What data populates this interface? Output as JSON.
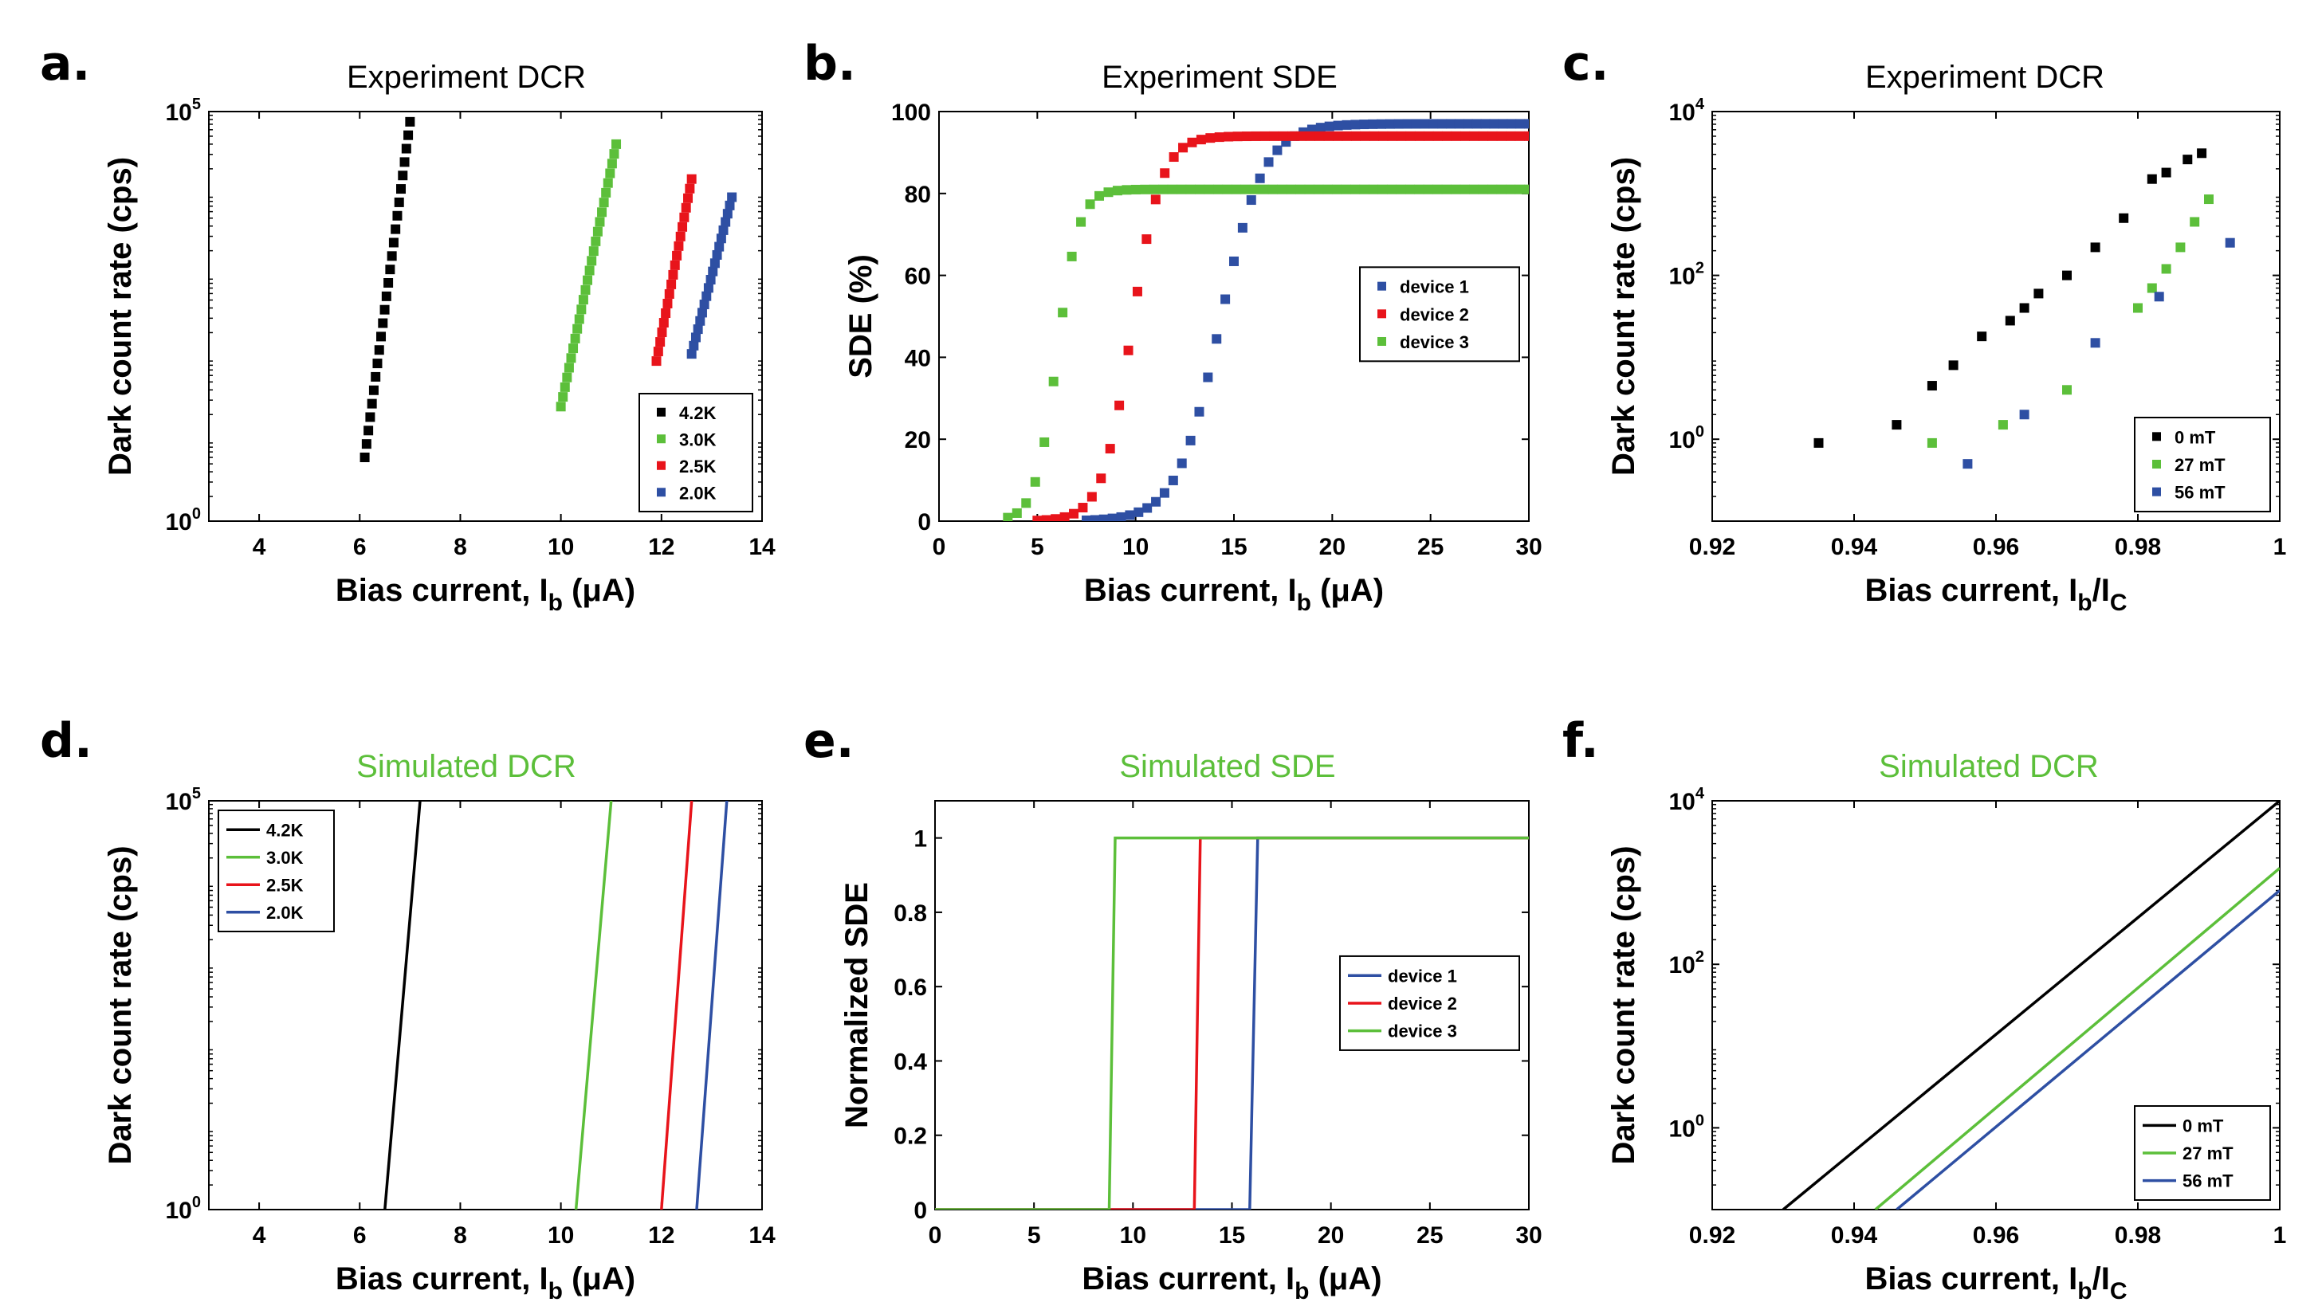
{
  "colors": {
    "black": "#000000",
    "green": "#5cbf3a",
    "red": "#e8141b",
    "blue": "#2e4fa3",
    "sim_title": "#5cbf3a"
  },
  "chart_data": [
    {
      "id": "a",
      "letter": "a.",
      "type": "scatter",
      "title": "Experiment DCR",
      "xlabel": "Bias current, I_b (μA)",
      "ylabel": "Dark count rate (cps)",
      "xlim": [
        3,
        14
      ],
      "ylim": [
        1,
        100000
      ],
      "yscale": "log",
      "xticks": [
        "4",
        "6",
        "8",
        "10",
        "12",
        "14"
      ],
      "yticks": [
        "10^0",
        "10^5"
      ],
      "legend": {
        "position": "bottom-right",
        "entries": [
          "4.2K",
          "3.0K",
          "2.5K",
          "2.0K"
        ]
      },
      "series": [
        {
          "name": "4.2K",
          "color": "black",
          "x": [
            6.1,
            7.0
          ],
          "y": [
            6,
            75000
          ],
          "n": 26
        },
        {
          "name": "3.0K",
          "color": "green",
          "x": [
            10.0,
            11.1
          ],
          "y": [
            25,
            40000
          ],
          "n": 28
        },
        {
          "name": "2.5K",
          "color": "red",
          "x": [
            11.9,
            12.6
          ],
          "y": [
            90,
            15000
          ],
          "n": 20
        },
        {
          "name": "2.0K",
          "color": "blue",
          "x": [
            12.6,
            13.4
          ],
          "y": [
            110,
            9000
          ],
          "n": 20
        }
      ]
    },
    {
      "id": "b",
      "letter": "b.",
      "type": "scatter",
      "title": "Experiment SDE",
      "xlabel": "Bias current, I_b (μA)",
      "ylabel": "SDE (%)",
      "xlim": [
        0,
        30
      ],
      "ylim": [
        0,
        100
      ],
      "yscale": "linear",
      "xticks": [
        "0",
        "5",
        "10",
        "15",
        "20",
        "25",
        "30"
      ],
      "yticks": [
        "0",
        "20",
        "40",
        "60",
        "80",
        "100"
      ],
      "legend": {
        "position": "right",
        "entries": [
          "device 1",
          "device 2",
          "device 3"
        ]
      },
      "series": [
        {
          "name": "device 1",
          "color": "blue",
          "x0": 7.5,
          "x1": 30,
          "mid": 14.3,
          "width": 1.1,
          "ymax": 97,
          "n": 52
        },
        {
          "name": "device 2",
          "color": "red",
          "x0": 5.0,
          "x1": 30,
          "mid": 9.8,
          "width": 0.75,
          "ymax": 94,
          "n": 55
        },
        {
          "name": "device 3",
          "color": "green",
          "x0": 3.5,
          "x1": 30,
          "mid": 6.0,
          "width": 0.55,
          "ymax": 81,
          "n": 58
        }
      ]
    },
    {
      "id": "c",
      "letter": "c.",
      "type": "scatter",
      "title": "Experiment DCR",
      "xlabel": "Bias current, I_b/I_C",
      "ylabel": "Dark count rate (cps)",
      "xlim": [
        0.92,
        1.0
      ],
      "ylim": [
        0.1,
        10000
      ],
      "yscale": "log",
      "xticks": [
        "0.92",
        "0.94",
        "0.96",
        "0.98",
        "1"
      ],
      "yticks": [
        "10^0",
        "10^2",
        "10^4"
      ],
      "legend": {
        "position": "bottom-right",
        "entries": [
          "0 mT",
          "27 mT",
          "56 mT"
        ]
      },
      "series": [
        {
          "name": "0 mT",
          "color": "black",
          "x": [
            0.935,
            0.946,
            0.951,
            0.954,
            0.958,
            0.962,
            0.964,
            0.966,
            0.97,
            0.974,
            0.978,
            0.982,
            0.984,
            0.987,
            0.989
          ],
          "y": [
            0.9,
            1.5,
            4.5,
            8,
            18,
            28,
            40,
            60,
            100,
            220,
            500,
            1500,
            1800,
            2600,
            3100
          ]
        },
        {
          "name": "27 mT",
          "color": "green",
          "x": [
            0.951,
            0.961,
            0.97,
            0.98,
            0.982,
            0.984,
            0.986,
            0.988,
            0.99
          ],
          "y": [
            0.9,
            1.5,
            4,
            40,
            70,
            120,
            220,
            450,
            850
          ]
        },
        {
          "name": "56 mT",
          "color": "blue",
          "x": [
            0.956,
            0.964,
            0.974,
            0.983,
            0.993
          ],
          "y": [
            0.5,
            2,
            15,
            55,
            250
          ]
        }
      ]
    },
    {
      "id": "d",
      "letter": "d.",
      "type": "line",
      "title": "Simulated DCR",
      "xlabel": "Bias current, I_b (μA)",
      "ylabel": "Dark count rate (cps)",
      "xlim": [
        3,
        14
      ],
      "ylim": [
        1,
        100000
      ],
      "yscale": "log",
      "xticks": [
        "4",
        "6",
        "8",
        "10",
        "12",
        "14"
      ],
      "yticks": [
        "10^0",
        "10^5"
      ],
      "legend": {
        "position": "top-left",
        "entries": [
          "4.2K",
          "3.0K",
          "2.5K",
          "2.0K"
        ]
      },
      "series": [
        {
          "name": "4.2K",
          "color": "black",
          "x": [
            6.5,
            7.2
          ],
          "y": [
            1,
            100000
          ]
        },
        {
          "name": "3.0K",
          "color": "green",
          "x": [
            10.3,
            11.0
          ],
          "y": [
            1,
            100000
          ]
        },
        {
          "name": "2.5K",
          "color": "red",
          "x": [
            12.0,
            12.6
          ],
          "y": [
            1,
            100000
          ]
        },
        {
          "name": "2.0K",
          "color": "blue",
          "x": [
            12.7,
            13.3
          ],
          "y": [
            1,
            100000
          ]
        }
      ]
    },
    {
      "id": "e",
      "letter": "e.",
      "type": "line",
      "title": "Simulated SDE",
      "xlabel": "Bias current, I_b (μA)",
      "ylabel": "Normalized SDE",
      "xlim": [
        0,
        30
      ],
      "ylim": [
        0,
        1.1
      ],
      "yscale": "linear",
      "xticks": [
        "0",
        "5",
        "10",
        "15",
        "20",
        "25",
        "30"
      ],
      "yticks": [
        "0",
        "0.2",
        "0.4",
        "0.6",
        "0.8",
        "1"
      ],
      "legend": {
        "position": "right",
        "entries": [
          "device 1",
          "device 2",
          "device 3"
        ]
      },
      "series": [
        {
          "name": "device 1",
          "color": "blue",
          "x": [
            0,
            15.9,
            16.3,
            30
          ],
          "y": [
            0,
            0,
            1,
            1
          ]
        },
        {
          "name": "device 2",
          "color": "red",
          "x": [
            0,
            13.1,
            13.4,
            30
          ],
          "y": [
            0,
            0,
            1,
            1
          ]
        },
        {
          "name": "device 3",
          "color": "green",
          "x": [
            0,
            8.8,
            9.1,
            30
          ],
          "y": [
            0,
            0,
            1,
            1
          ]
        }
      ]
    },
    {
      "id": "f",
      "letter": "f.",
      "type": "line",
      "title": "Simulated DCR",
      "xlabel": "Bias current, I_b/I_C",
      "ylabel": "Dark count rate (cps)",
      "xlim": [
        0.92,
        1.0
      ],
      "ylim": [
        0.1,
        10000
      ],
      "yscale": "log",
      "xticks": [
        "0.92",
        "0.94",
        "0.96",
        "0.98",
        "1"
      ],
      "yticks": [
        "10^0",
        "10^2",
        "10^4"
      ],
      "legend": {
        "position": "bottom-right",
        "entries": [
          "0 mT",
          "27 mT",
          "56 mT"
        ]
      },
      "series": [
        {
          "name": "0 mT",
          "color": "black",
          "x": [
            0.93,
            1.0
          ],
          "y": [
            0.1,
            10000
          ]
        },
        {
          "name": "27 mT",
          "color": "green",
          "x": [
            0.943,
            1.0
          ],
          "y": [
            0.1,
            1500
          ]
        },
        {
          "name": "56 mT",
          "color": "blue",
          "x": [
            0.946,
            1.0
          ],
          "y": [
            0.1,
            800
          ]
        }
      ]
    }
  ]
}
